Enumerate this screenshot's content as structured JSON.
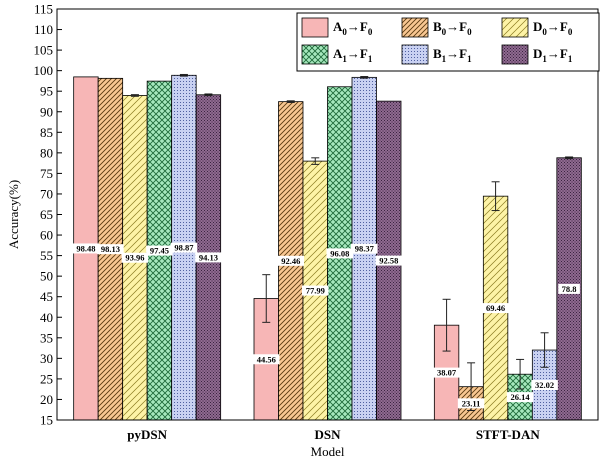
{
  "chart_data": {
    "type": "bar",
    "xlabel": "Model",
    "ylabel": "Accuracy(%)",
    "ylim": [
      15,
      115
    ],
    "yticks": [
      15,
      20,
      25,
      30,
      35,
      40,
      45,
      50,
      55,
      60,
      65,
      70,
      75,
      80,
      85,
      90,
      95,
      100,
      105,
      110,
      115
    ],
    "categories": [
      "pyDSN",
      "DSN",
      "STFT-DAN"
    ],
    "legend_position": "top-right",
    "series": [
      {
        "name": "A0→F0",
        "base": "A",
        "arrow": "→F",
        "sub_a": "0",
        "sub_b": "0",
        "color": "#f7b6b6",
        "pattern": "solid",
        "values": [
          98.48,
          44.56,
          38.07
        ],
        "labels": [
          "98.48",
          "44.56",
          "38.07"
        ],
        "errors": [
          0.0,
          5.8,
          6.3
        ]
      },
      {
        "name": "B0→F0",
        "base": "B",
        "arrow": "→F",
        "sub_a": "0",
        "sub_b": "0",
        "color": "#f8c792",
        "pattern": "diag-dense",
        "values": [
          98.13,
          92.46,
          23.11
        ],
        "labels": [
          "98.13",
          "92.46",
          "23.11"
        ],
        "errors": [
          0.0,
          0.2,
          5.8
        ]
      },
      {
        "name": "D0→F0",
        "base": "D",
        "arrow": "→F",
        "sub_a": "0",
        "sub_b": "0",
        "color": "#fdf3a6",
        "pattern": "diag-sparse",
        "values": [
          93.96,
          77.99,
          69.46
        ],
        "labels": [
          "93.96",
          "77.99",
          "69.46"
        ],
        "errors": [
          0.2,
          0.8,
          3.5
        ]
      },
      {
        "name": "A1→F1",
        "base": "A",
        "arrow": "→F",
        "sub_a": "1",
        "sub_b": "1",
        "color": "#a6e8bd",
        "pattern": "crosshatch",
        "values": [
          97.45,
          96.08,
          26.14
        ],
        "labels": [
          "97.45",
          "96.08",
          "26.14"
        ],
        "errors": [
          0.0,
          0.0,
          3.6
        ]
      },
      {
        "name": "B1→F1",
        "base": "B",
        "arrow": "→F",
        "sub_a": "1",
        "sub_b": "1",
        "color": "#c9d1f2",
        "pattern": "dots",
        "values": [
          98.87,
          98.37,
          32.02
        ],
        "labels": [
          "98.87",
          "98.37",
          "32.02"
        ],
        "errors": [
          0.2,
          0.2,
          4.2
        ]
      },
      {
        "name": "D1→F1",
        "base": "D",
        "arrow": "→F",
        "sub_a": "1",
        "sub_b": "1",
        "color": "#8f6a90",
        "pattern": "dots-dense",
        "values": [
          94.13,
          92.58,
          78.8
        ],
        "labels": [
          "94.13",
          "92.58",
          "78.8"
        ],
        "errors": [
          0.2,
          0.0,
          0.2
        ]
      }
    ]
  }
}
